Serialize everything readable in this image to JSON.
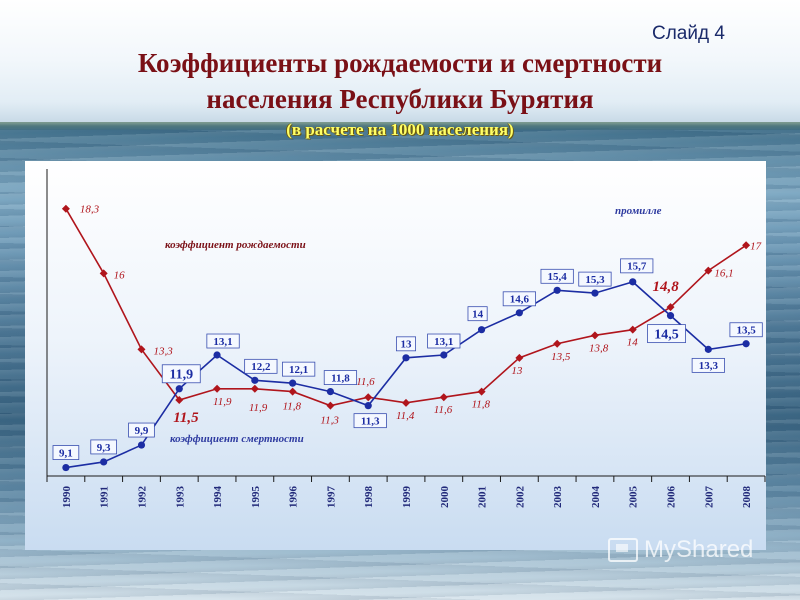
{
  "slide_label": "Слайд 4",
  "title_line1": "Коэффициенты рождаемости и смертности",
  "title_line2": "населения Республики Бурятия",
  "subtitle": "(в расчете на 1000 населения)",
  "watermark": "MyShared",
  "colors": {
    "birth": "#b0151c",
    "death": "#1c2da3",
    "title": "#7a1016",
    "subtitle": "#ffff66"
  },
  "chart_data": {
    "type": "line",
    "unit_label": "промилле",
    "categories": [
      "1990",
      "1991",
      "1992",
      "1993",
      "1994",
      "1995",
      "1996",
      "1997",
      "1998",
      "1999",
      "2000",
      "2001",
      "2002",
      "2003",
      "2004",
      "2005",
      "2006",
      "2007",
      "2008"
    ],
    "series": [
      {
        "name": "коэффициент рождаемости",
        "color": "#b0151c",
        "marker": "diamond",
        "values": [
          18.3,
          16,
          13.3,
          11.5,
          11.9,
          11.9,
          11.8,
          11.3,
          11.6,
          11.4,
          11.6,
          11.8,
          13,
          13.5,
          13.8,
          14,
          14.8,
          16.1,
          17
        ],
        "labels": [
          "18,3",
          "16",
          "13,3",
          "11,5",
          "11,9",
          "11,9",
          "11,8",
          "11,3",
          "11,6",
          "11,4",
          "11,6",
          "11,8",
          "13",
          "13,5",
          "13,8",
          "14",
          "14,8",
          "16,1",
          "17"
        ]
      },
      {
        "name": "коэффициент смертности",
        "color": "#1c2da3",
        "marker": "circle",
        "values": [
          9.1,
          9.3,
          9.9,
          11.9,
          13.1,
          12.2,
          12.1,
          11.8,
          11.3,
          13,
          13.1,
          14,
          14.6,
          15.4,
          15.3,
          15.7,
          14.5,
          13.3,
          13.5
        ],
        "labels": [
          "9,1",
          "9,3",
          "9,9",
          "11,9",
          "13,1",
          "12,2",
          "12,1",
          "11,8",
          "11,3",
          "13",
          "13,1",
          "14",
          "14,6",
          "15,4",
          "15,3",
          "15,7",
          "14,5",
          "13,3",
          "13,5"
        ]
      }
    ],
    "ylim": [
      8.8,
      19
    ],
    "grid": false,
    "legend": "inline labels"
  }
}
